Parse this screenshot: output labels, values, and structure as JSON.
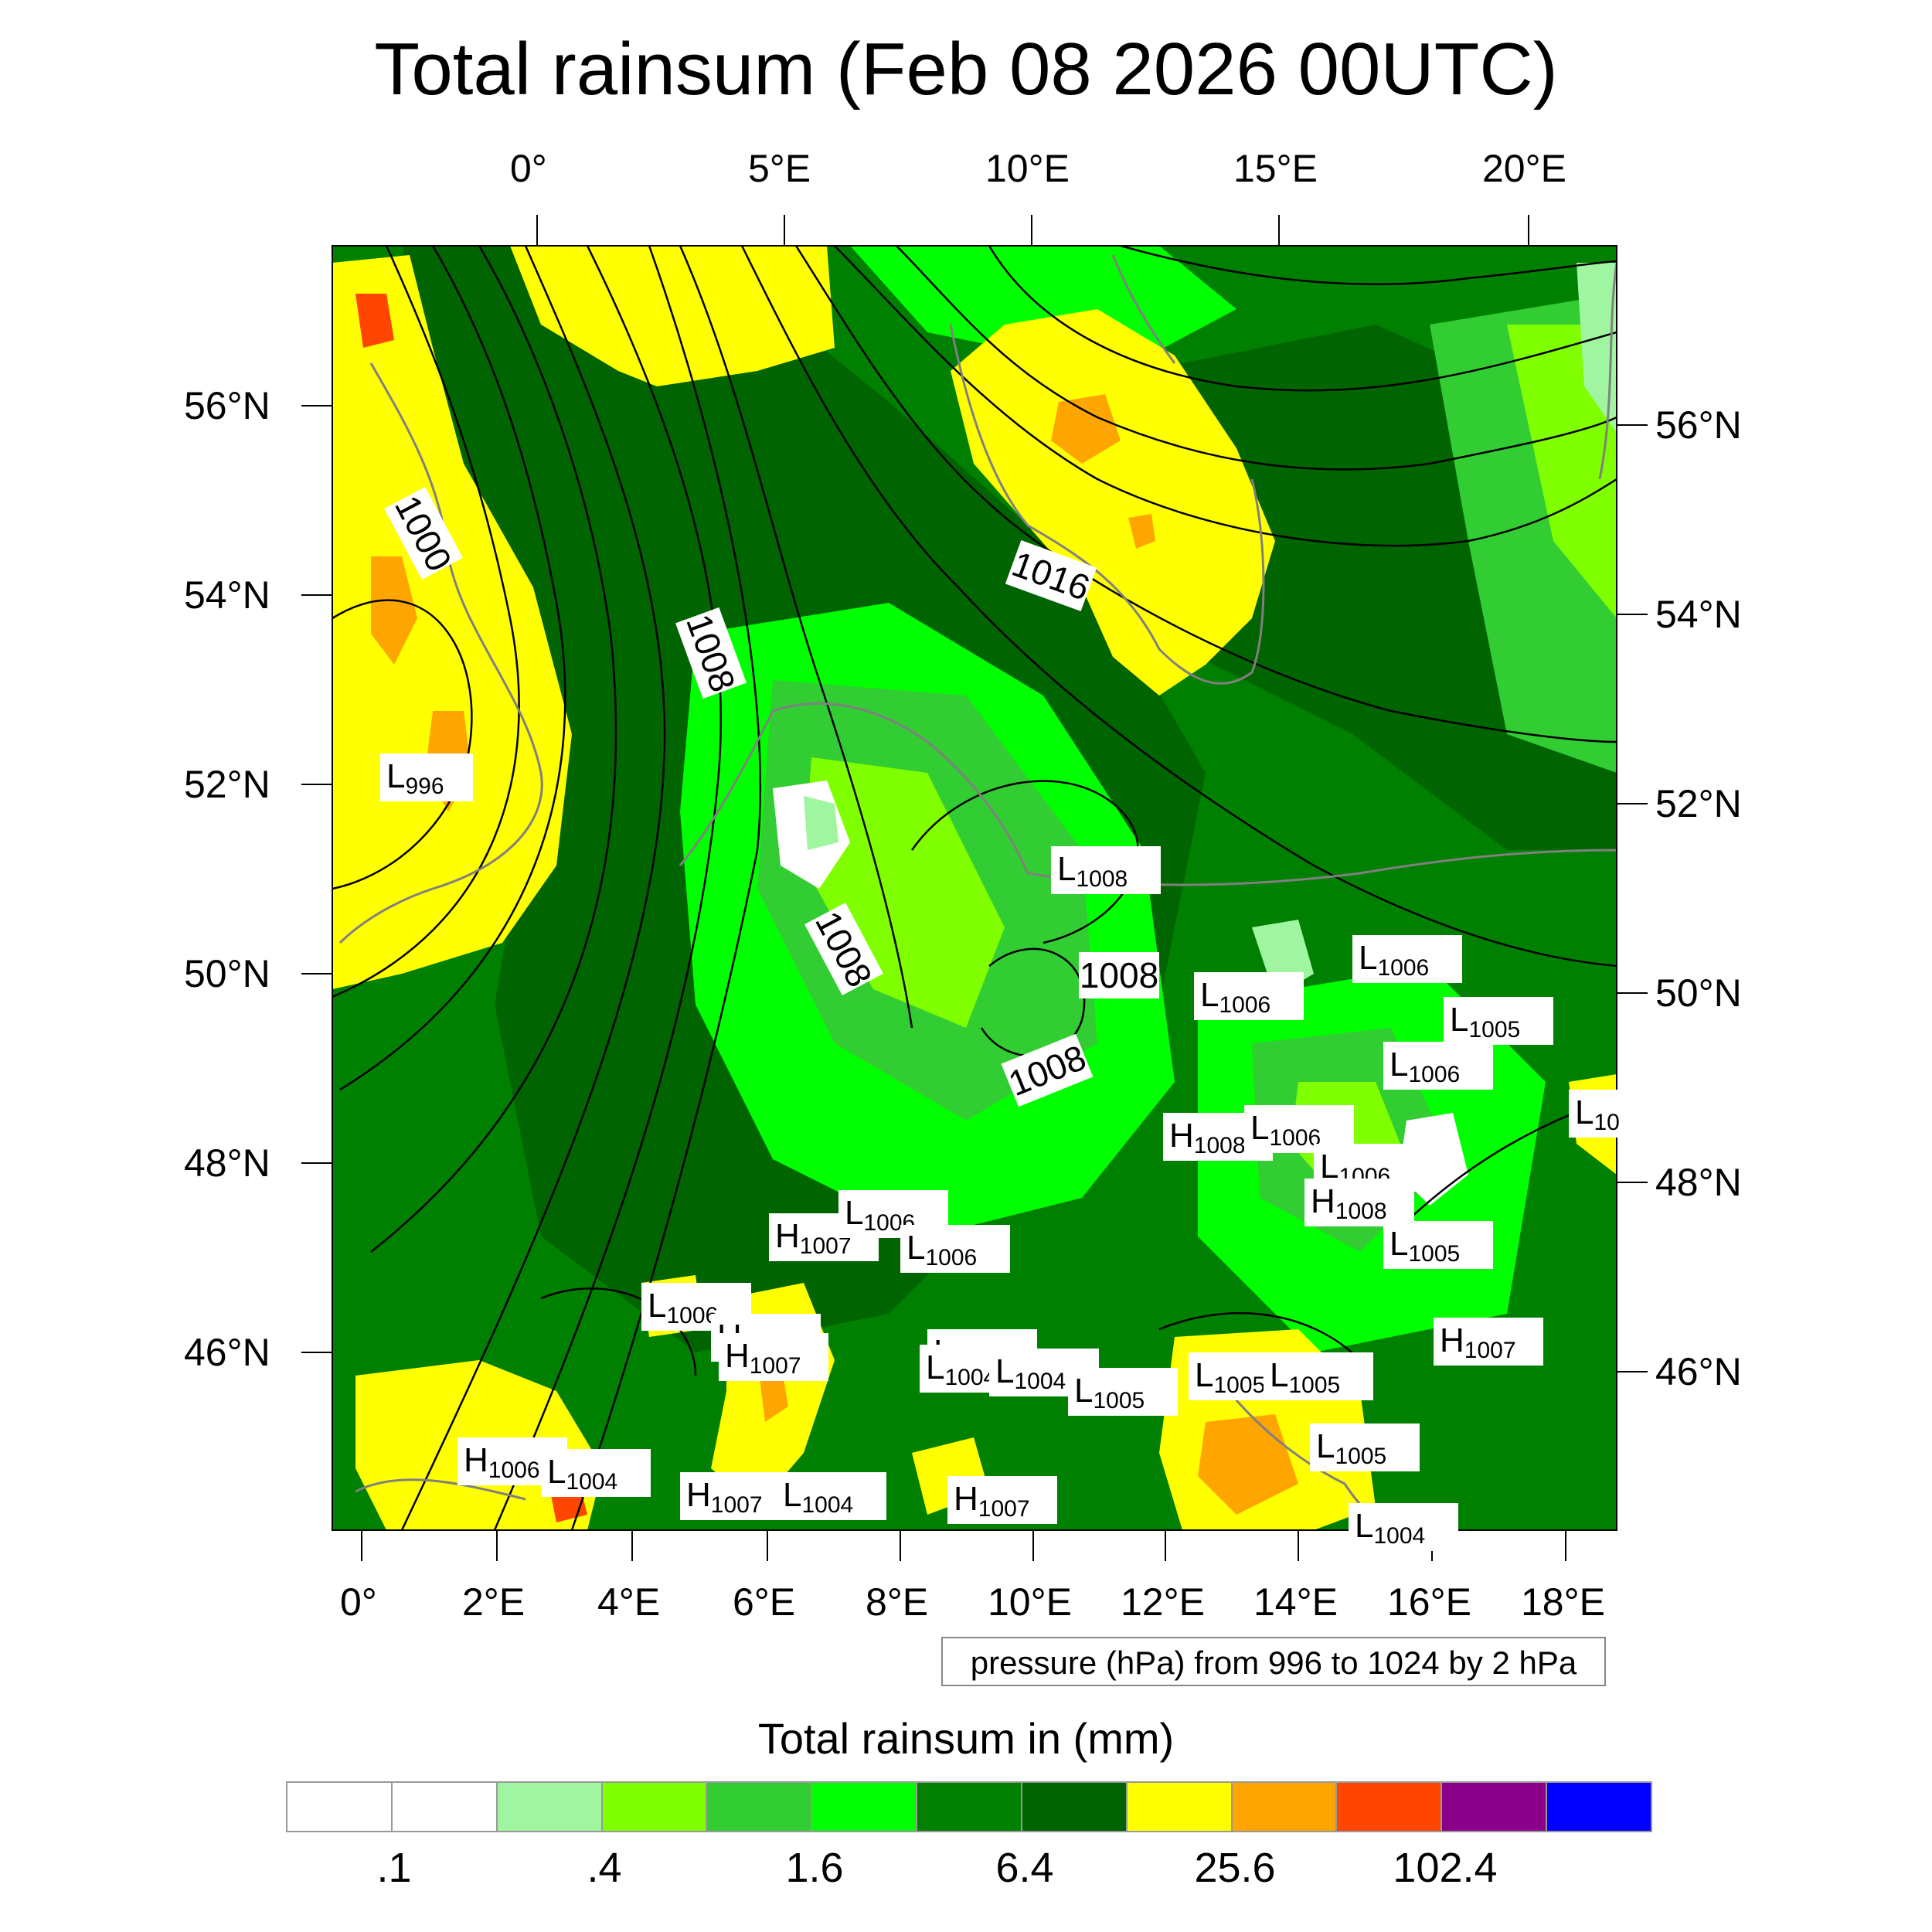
{
  "title": "Total rainsum (Feb 08 2026 00UTC)",
  "top_lon_ticks": [
    "0°",
    "5°E",
    "10°E",
    "15°E",
    "20°E"
  ],
  "bottom_lon_ticks": [
    "0°",
    "2°E",
    "4°E",
    "6°E",
    "8°E",
    "10°E",
    "12°E",
    "14°E",
    "16°E",
    "18°E"
  ],
  "left_lat_ticks": [
    "56°N",
    "54°N",
    "52°N",
    "50°N",
    "48°N",
    "46°N"
  ],
  "right_lat_ticks": [
    "56°N",
    "54°N",
    "52°N",
    "50°N",
    "48°N",
    "46°N"
  ],
  "isobar_labels": [
    "1000",
    "1008",
    "1016",
    "1008",
    "1008",
    "1008"
  ],
  "pressure_centers": [
    {
      "type": "L",
      "value": "996"
    },
    {
      "type": "L",
      "value": "1008"
    },
    {
      "type": "L",
      "value": "1006"
    },
    {
      "type": "L",
      "value": "1006"
    },
    {
      "type": "L",
      "value": "1005"
    },
    {
      "type": "L",
      "value": "1006"
    },
    {
      "type": "L",
      "value": "10"
    },
    {
      "type": "H",
      "value": "1008"
    },
    {
      "type": "L",
      "value": "1006"
    },
    {
      "type": "L",
      "value": "1006"
    },
    {
      "type": "H",
      "value": "1008"
    },
    {
      "type": "H",
      "value": "1007"
    },
    {
      "type": "L",
      "value": "1006"
    },
    {
      "type": "L",
      "value": "1006"
    },
    {
      "type": "L",
      "value": "1005"
    },
    {
      "type": "L",
      "value": "1006"
    },
    {
      "type": "H",
      "value": "1007"
    },
    {
      "type": "L",
      "value": "1005"
    },
    {
      "type": "H",
      "value": "1007"
    },
    {
      "type": "H",
      "value": "1007"
    },
    {
      "type": "L",
      "value": "1004"
    },
    {
      "type": "L",
      "value": "1004"
    },
    {
      "type": "L",
      "value": "1005"
    },
    {
      "type": "L",
      "value": "1005"
    },
    {
      "type": "L",
      "value": "1005"
    },
    {
      "type": "H",
      "value": "1006"
    },
    {
      "type": "L",
      "value": "1004"
    },
    {
      "type": "H",
      "value": "1007"
    },
    {
      "type": "L",
      "value": "1004"
    },
    {
      "type": "H",
      "value": "1007"
    },
    {
      "type": "L",
      "value": "1005"
    },
    {
      "type": "L",
      "value": "1004"
    }
  ],
  "pressure_note": "pressure (hPa) from 996 to 1024 by 2 hPa",
  "legend": {
    "title": "Total rainsum in (mm)",
    "colors": [
      "#ffffff",
      "#ffffff",
      "#a0f5a0",
      "#80ff00",
      "#32cd32",
      "#00ff00",
      "#008000",
      "#006400",
      "#ffff00",
      "#ffa500",
      "#ff4500",
      "#8b008b",
      "#0000ff"
    ],
    "labels": [
      ".1",
      ".4",
      "1.6",
      "6.4",
      "25.6",
      "102.4"
    ]
  },
  "colors": {
    "dark_green": "#006400",
    "green": "#008000",
    "bright_green": "#00ff00",
    "lime": "#32cd32",
    "yellow": "#ffff00",
    "orange": "#ffa500",
    "red": "#ff4500"
  }
}
